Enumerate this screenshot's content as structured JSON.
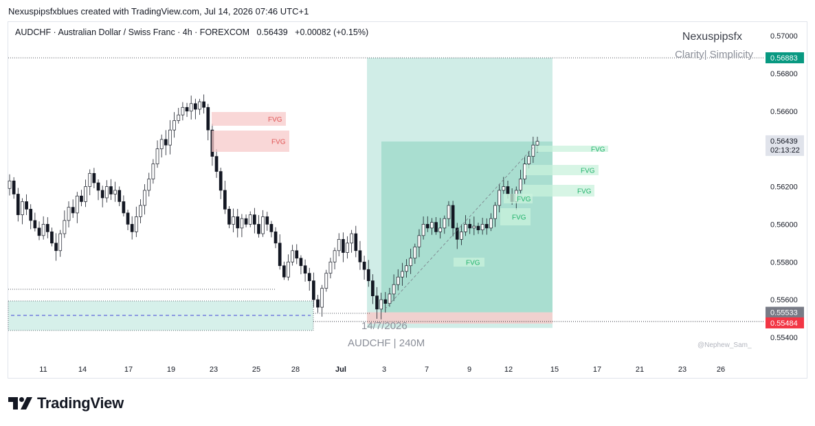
{
  "caption": "Nexuspipsfxblues created with TradingView.com, Jul 14, 2026 07:46 UTC+1",
  "legend": {
    "symbol_desc": "AUDCHF · Australian Dollar / Swiss Franc · 4h · FOREXCOM",
    "price": "0.56439",
    "change": "+0.00082 (+0.15%)"
  },
  "brand": {
    "name": "Nexuspipsfx",
    "tagline": "Clarity| Simplicity"
  },
  "annotations": {
    "date": "14/7/2026",
    "symbol_tf": "AUDCHF | 240M",
    "credit": "@Nephew_Sam_"
  },
  "footer": {
    "logo_text": "TradingView"
  },
  "colors": {
    "bull_candle": "#ffffff",
    "bear_candle": "#131722",
    "fvg_bear": "#f7c9c9",
    "fvg_bull": "#c9f2dc",
    "target_zone": "#aadfd3",
    "stop_zone": "#f7c9c9",
    "tp_label": "#089981",
    "sl_label": "#f23645"
  },
  "chart_data": {
    "type": "candlestick",
    "timeframe": "4h",
    "x_ticks": [
      "11",
      "14",
      "17",
      "19",
      "23",
      "25",
      "28",
      "Jul",
      "3",
      "7",
      "9",
      "12",
      "15",
      "17",
      "21",
      "23",
      "26"
    ],
    "y_ticks": [
      "0.57000",
      "0.56800",
      "0.56600",
      "0.56200",
      "0.56000",
      "0.55800",
      "0.55600",
      "0.55400"
    ],
    "ylim": [
      0.5536,
      0.5703
    ],
    "price_labels": [
      {
        "role": "take-profit",
        "value": "0.56883",
        "color": "#089981"
      },
      {
        "role": "current",
        "value": "0.56439",
        "countdown": "02:13:22"
      },
      {
        "role": "entry",
        "value": "0.55533",
        "color": "#787b86"
      },
      {
        "role": "stop-loss",
        "value": "0.55484",
        "color": "#f23645"
      }
    ],
    "fvg_labels": [
      "FVG",
      "FVG",
      "FVG",
      "FVG",
      "FVG",
      "FVG",
      "FVG",
      "FVG"
    ],
    "candles_close_path": [
      0.5623,
      0.5616,
      0.5605,
      0.5612,
      0.5608,
      0.5602,
      0.5598,
      0.5594,
      0.56,
      0.5596,
      0.559,
      0.5586,
      0.5595,
      0.5602,
      0.5609,
      0.5606,
      0.5615,
      0.5612,
      0.562,
      0.5627,
      0.5622,
      0.5618,
      0.5614,
      0.562,
      0.5616,
      0.5618,
      0.5612,
      0.5606,
      0.56,
      0.5596,
      0.5604,
      0.561,
      0.5618,
      0.5624,
      0.5632,
      0.564,
      0.5645,
      0.5642,
      0.565,
      0.5655,
      0.5658,
      0.5662,
      0.566,
      0.5664,
      0.5661,
      0.5665,
      0.5662,
      0.565,
      0.5636,
      0.5628,
      0.5618,
      0.5608,
      0.56,
      0.5604,
      0.5598,
      0.5603,
      0.56,
      0.5605,
      0.56,
      0.5595,
      0.5604,
      0.56,
      0.5596,
      0.559,
      0.5578,
      0.5572,
      0.558,
      0.5586,
      0.5582,
      0.5578,
      0.5574,
      0.557,
      0.556,
      0.5556,
      0.5566,
      0.5574,
      0.558,
      0.5586,
      0.5592,
      0.5585,
      0.559,
      0.5595,
      0.5586,
      0.558,
      0.5576,
      0.557,
      0.5562,
      0.5555,
      0.556,
      0.5558,
      0.5563,
      0.5568,
      0.5572,
      0.5575,
      0.5578,
      0.5582,
      0.5588,
      0.5594,
      0.56,
      0.5598,
      0.5601,
      0.5596,
      0.5598,
      0.5603,
      0.561,
      0.5598,
      0.5592,
      0.5596,
      0.56,
      0.5598,
      0.5599,
      0.5597,
      0.56,
      0.5598,
      0.5603,
      0.561,
      0.5618,
      0.562,
      0.5616,
      0.5612,
      0.5618,
      0.5624,
      0.5632,
      0.5636,
      0.5642,
      0.5644
    ]
  }
}
